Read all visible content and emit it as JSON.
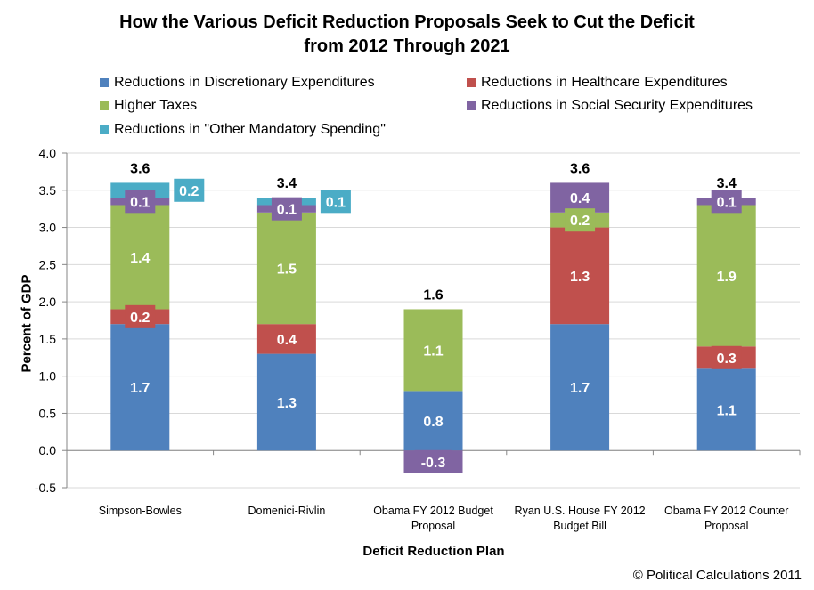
{
  "chart_data": {
    "type": "bar",
    "stacked": true,
    "title_line1": "How the Various Deficit Reduction Proposals Seek to Cut the Deficit",
    "title_line2": "from 2012 Through 2021",
    "xlabel": "Deficit Reduction Plan",
    "ylabel": "Percent of GDP",
    "ylim": [
      -0.5,
      4.0
    ],
    "yticks": [
      "4.0",
      "3.5",
      "3.0",
      "2.5",
      "2.0",
      "1.5",
      "1.0",
      "0.5",
      "0.0",
      "-0.5"
    ],
    "grid": true,
    "legend_position": "top",
    "categories": [
      [
        "Simpson-Bowles"
      ],
      [
        "Domenici-Rivlin"
      ],
      [
        "Obama FY 2012 Budget",
        "Proposal"
      ],
      [
        "Ryan U.S. House FY 2012",
        "Budget Bill"
      ],
      [
        "Obama FY 2012 Counter",
        "Proposal"
      ]
    ],
    "series": [
      {
        "name": "Reductions in Discretionary Expenditures",
        "color": "#4F81BD",
        "values": [
          1.7,
          1.3,
          0.8,
          1.7,
          1.1
        ]
      },
      {
        "name": "Reductions in Healthcare Expenditures",
        "color": "#C0504D",
        "values": [
          0.2,
          0.4,
          0,
          1.3,
          0.3
        ]
      },
      {
        "name": "Higher Taxes",
        "color": "#9BBB59",
        "values": [
          1.4,
          1.5,
          1.1,
          0.2,
          1.9
        ]
      },
      {
        "name": "Reductions in Social Security Expenditures",
        "color": "#8064A2",
        "values": [
          0.1,
          0.1,
          -0.3,
          0.4,
          0.1
        ]
      },
      {
        "name": "Reductions in \"Other Mandatory Spending\"",
        "color": "#4BACC6",
        "values": [
          0.2,
          0.1,
          0,
          0,
          0
        ]
      }
    ],
    "totals": [
      "3.6",
      "3.4",
      "1.6",
      "3.6",
      "3.4"
    ]
  },
  "copyright": "© Political Calculations 2011"
}
